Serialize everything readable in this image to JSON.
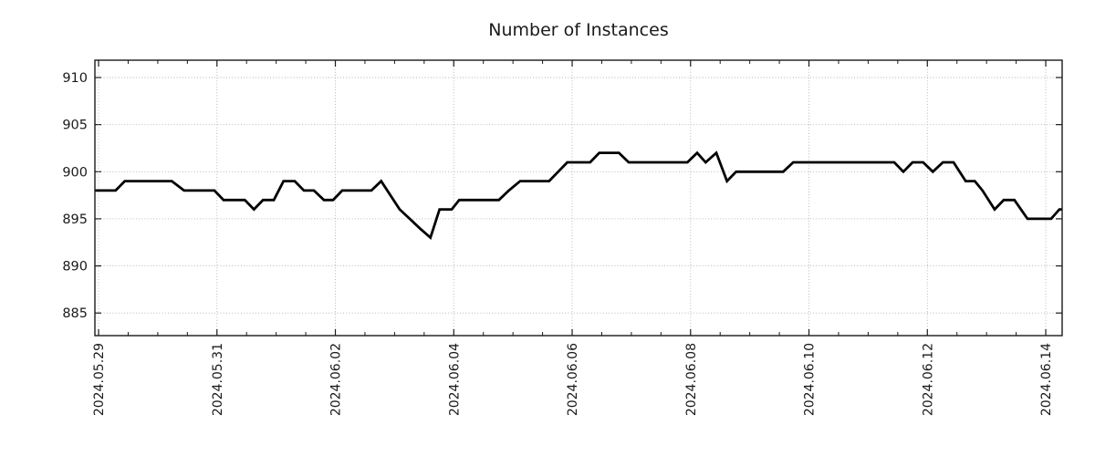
{
  "page": {
    "background": "#ffffff"
  },
  "chart_data": {
    "type": "line",
    "title": "Number of Instances",
    "xlabel": "",
    "ylabel": "",
    "grid": true,
    "legend": "none",
    "line_color": "#000000",
    "grid_color": "#b0b0b0",
    "axis_color": "#1a1a1a",
    "x_unit": "days since 2024.05.29",
    "xlim": [
      -0.062,
      16.277
    ],
    "ylim": [
      882.6,
      911.84
    ],
    "y_ticks": [
      885,
      890,
      895,
      900,
      905,
      910
    ],
    "x_ticks": [
      {
        "t": 0,
        "label": "2024.05.29"
      },
      {
        "t": 2,
        "label": "2024.05.31"
      },
      {
        "t": 4,
        "label": "2024.06.02"
      },
      {
        "t": 6,
        "label": "2024.06.04"
      },
      {
        "t": 8,
        "label": "2024.06.06"
      },
      {
        "t": 10,
        "label": "2024.06.08"
      },
      {
        "t": 12,
        "label": "2024.06.10"
      },
      {
        "t": 14,
        "label": "2024.06.12"
      },
      {
        "t": 16,
        "label": "2024.06.14"
      }
    ],
    "x_minor_tick_interval": 0.5,
    "series": [
      {
        "name": "instances",
        "points": [
          [
            -0.062,
            898
          ],
          [
            0.288,
            898
          ],
          [
            0.442,
            899
          ],
          [
            1.238,
            899
          ],
          [
            1.444,
            898
          ],
          [
            1.958,
            898
          ],
          [
            2.112,
            897
          ],
          [
            2.471,
            897
          ],
          [
            2.625,
            896
          ],
          [
            2.779,
            897
          ],
          [
            2.96,
            897
          ],
          [
            3.124,
            899
          ],
          [
            3.314,
            899
          ],
          [
            3.468,
            898
          ],
          [
            3.637,
            898
          ],
          [
            3.807,
            897
          ],
          [
            3.961,
            897
          ],
          [
            4.115,
            898
          ],
          [
            4.609,
            898
          ],
          [
            4.773,
            899
          ],
          [
            5.086,
            896
          ],
          [
            5.256,
            895
          ],
          [
            5.425,
            894
          ],
          [
            5.606,
            893
          ],
          [
            5.76,
            896
          ],
          [
            5.965,
            896
          ],
          [
            6.093,
            897
          ],
          [
            6.762,
            897
          ],
          [
            6.93,
            898
          ],
          [
            7.121,
            899
          ],
          [
            7.61,
            899
          ],
          [
            7.764,
            900
          ],
          [
            7.918,
            901
          ],
          [
            8.303,
            901
          ],
          [
            8.457,
            902
          ],
          [
            8.79,
            902
          ],
          [
            8.955,
            901
          ],
          [
            9.947,
            901
          ],
          [
            10.111,
            902
          ],
          [
            10.255,
            901
          ],
          [
            10.435,
            902
          ],
          [
            10.615,
            899
          ],
          [
            10.769,
            900
          ],
          [
            11.565,
            900
          ],
          [
            11.734,
            901
          ],
          [
            13.441,
            901
          ],
          [
            13.595,
            900
          ],
          [
            13.749,
            901
          ],
          [
            13.929,
            901
          ],
          [
            14.093,
            900
          ],
          [
            14.262,
            901
          ],
          [
            14.443,
            901
          ],
          [
            14.648,
            899
          ],
          [
            14.802,
            899
          ],
          [
            14.931,
            898
          ],
          [
            15.136,
            896
          ],
          [
            15.29,
            897
          ],
          [
            15.471,
            897
          ],
          [
            15.691,
            895
          ],
          [
            16.09,
            895
          ],
          [
            16.23,
            896
          ],
          [
            16.277,
            896
          ]
        ]
      }
    ]
  }
}
